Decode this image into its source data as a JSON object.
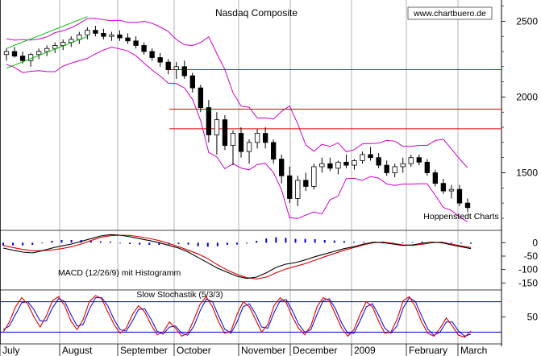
{
  "chart_data": {
    "type": "candlestick",
    "title": "Nasdaq Composite",
    "source_label": "www.chartbuero.de",
    "credit": "Hoppenstedt Charts",
    "x_months": [
      "July",
      "August",
      "September",
      "October",
      "November",
      "December",
      "2009",
      "February",
      "March"
    ],
    "price_panel": {
      "y_ticks": [
        2500,
        2000,
        1500
      ],
      "ylim": [
        1120,
        2640
      ],
      "resistance_levels": [
        2180,
        1920,
        1790
      ],
      "candles": [
        {
          "o": 2280,
          "h": 2320,
          "l": 2240,
          "c": 2300
        },
        {
          "o": 2300,
          "h": 2330,
          "l": 2260,
          "c": 2270
        },
        {
          "o": 2270,
          "h": 2300,
          "l": 2220,
          "c": 2240
        },
        {
          "o": 2240,
          "h": 2290,
          "l": 2200,
          "c": 2280
        },
        {
          "o": 2280,
          "h": 2320,
          "l": 2250,
          "c": 2300
        },
        {
          "o": 2300,
          "h": 2340,
          "l": 2270,
          "c": 2320
        },
        {
          "o": 2320,
          "h": 2360,
          "l": 2290,
          "c": 2340
        },
        {
          "o": 2340,
          "h": 2380,
          "l": 2310,
          "c": 2360
        },
        {
          "o": 2360,
          "h": 2400,
          "l": 2330,
          "c": 2380
        },
        {
          "o": 2380,
          "h": 2430,
          "l": 2350,
          "c": 2410
        },
        {
          "o": 2410,
          "h": 2460,
          "l": 2380,
          "c": 2440
        },
        {
          "o": 2440,
          "h": 2470,
          "l": 2400,
          "c": 2420
        },
        {
          "o": 2420,
          "h": 2450,
          "l": 2380,
          "c": 2400
        },
        {
          "o": 2400,
          "h": 2430,
          "l": 2370,
          "c": 2410
        },
        {
          "o": 2410,
          "h": 2440,
          "l": 2370,
          "c": 2390
        },
        {
          "o": 2390,
          "h": 2420,
          "l": 2350,
          "c": 2370
        },
        {
          "o": 2370,
          "h": 2400,
          "l": 2320,
          "c": 2340
        },
        {
          "o": 2340,
          "h": 2360,
          "l": 2280,
          "c": 2300
        },
        {
          "o": 2300,
          "h": 2320,
          "l": 2240,
          "c": 2260
        },
        {
          "o": 2260,
          "h": 2290,
          "l": 2200,
          "c": 2230
        },
        {
          "o": 2230,
          "h": 2250,
          "l": 2150,
          "c": 2180
        },
        {
          "o": 2180,
          "h": 2230,
          "l": 2120,
          "c": 2200
        },
        {
          "o": 2200,
          "h": 2240,
          "l": 2120,
          "c": 2140
        },
        {
          "o": 2140,
          "h": 2160,
          "l": 2030,
          "c": 2060
        },
        {
          "o": 2060,
          "h": 2080,
          "l": 1900,
          "c": 1930
        },
        {
          "o": 1930,
          "h": 1980,
          "l": 1700,
          "c": 1750
        },
        {
          "o": 1750,
          "h": 1900,
          "l": 1620,
          "c": 1850
        },
        {
          "o": 1850,
          "h": 1880,
          "l": 1650,
          "c": 1680
        },
        {
          "o": 1680,
          "h": 1780,
          "l": 1550,
          "c": 1760
        },
        {
          "o": 1760,
          "h": 1800,
          "l": 1600,
          "c": 1640
        },
        {
          "o": 1640,
          "h": 1720,
          "l": 1560,
          "c": 1700
        },
        {
          "o": 1700,
          "h": 1790,
          "l": 1660,
          "c": 1760
        },
        {
          "o": 1760,
          "h": 1800,
          "l": 1660,
          "c": 1700
        },
        {
          "o": 1700,
          "h": 1720,
          "l": 1560,
          "c": 1590
        },
        {
          "o": 1590,
          "h": 1620,
          "l": 1430,
          "c": 1480
        },
        {
          "o": 1480,
          "h": 1540,
          "l": 1300,
          "c": 1330
        },
        {
          "o": 1330,
          "h": 1480,
          "l": 1280,
          "c": 1450
        },
        {
          "o": 1450,
          "h": 1500,
          "l": 1380,
          "c": 1410
        },
        {
          "o": 1410,
          "h": 1560,
          "l": 1390,
          "c": 1540
        },
        {
          "o": 1540,
          "h": 1600,
          "l": 1500,
          "c": 1560
        },
        {
          "o": 1560,
          "h": 1600,
          "l": 1510,
          "c": 1530
        },
        {
          "o": 1530,
          "h": 1580,
          "l": 1490,
          "c": 1570
        },
        {
          "o": 1570,
          "h": 1620,
          "l": 1530,
          "c": 1550
        },
        {
          "o": 1550,
          "h": 1590,
          "l": 1520,
          "c": 1580
        },
        {
          "o": 1580,
          "h": 1640,
          "l": 1560,
          "c": 1620
        },
        {
          "o": 1620,
          "h": 1670,
          "l": 1580,
          "c": 1600
        },
        {
          "o": 1600,
          "h": 1630,
          "l": 1530,
          "c": 1550
        },
        {
          "o": 1550,
          "h": 1580,
          "l": 1480,
          "c": 1500
        },
        {
          "o": 1500,
          "h": 1560,
          "l": 1470,
          "c": 1540
        },
        {
          "o": 1540,
          "h": 1600,
          "l": 1500,
          "c": 1560
        },
        {
          "o": 1560,
          "h": 1620,
          "l": 1540,
          "c": 1600
        },
        {
          "o": 1600,
          "h": 1620,
          "l": 1550,
          "c": 1570
        },
        {
          "o": 1570,
          "h": 1590,
          "l": 1480,
          "c": 1500
        },
        {
          "o": 1500,
          "h": 1520,
          "l": 1410,
          "c": 1430
        },
        {
          "o": 1430,
          "h": 1460,
          "l": 1360,
          "c": 1380
        },
        {
          "o": 1380,
          "h": 1420,
          "l": 1330,
          "c": 1390
        },
        {
          "o": 1390,
          "h": 1420,
          "l": 1280,
          "c": 1300
        },
        {
          "o": 1300,
          "h": 1330,
          "l": 1240,
          "c": 1270
        }
      ]
    },
    "macd_panel": {
      "label": "MACD (12/26/9) mit Histogramm",
      "y_ticks": [
        0,
        -50,
        -100,
        -150
      ],
      "ylim": [
        -170,
        40
      ],
      "macd": [
        -20,
        -28,
        -35,
        -38,
        -30,
        -20,
        -12,
        -5,
        5,
        15,
        25,
        30,
        28,
        22,
        15,
        8,
        0,
        -10,
        -20,
        -35,
        -55,
        -75,
        -95,
        -110,
        -125,
        -133,
        -128,
        -112,
        -92,
        -80,
        -74,
        -64,
        -52,
        -42,
        -32,
        -22,
        -15,
        -5,
        2,
        0,
        -5,
        -10,
        -8,
        -2,
        2,
        0,
        -8,
        -15,
        -22
      ],
      "signal": [
        -10,
        -18,
        -25,
        -30,
        -30,
        -27,
        -22,
        -15,
        -5,
        8,
        20,
        26,
        28,
        27,
        22,
        16,
        8,
        -3,
        -15,
        -28,
        -42,
        -60,
        -82,
        -102,
        -118,
        -130,
        -135,
        -128,
        -112,
        -98,
        -88,
        -78,
        -65,
        -52,
        -40,
        -28,
        -18,
        -8,
        0,
        2,
        -2,
        -8,
        -10,
        -6,
        0,
        2,
        -5,
        -12,
        -18
      ],
      "histogram": [
        -10,
        -10,
        -10,
        -8,
        0,
        7,
        10,
        10,
        10,
        7,
        5,
        4,
        0,
        -5,
        -7,
        -8,
        -8,
        -7,
        -5,
        -7,
        -13,
        -15,
        -13,
        -8,
        -7,
        -3,
        7,
        16,
        20,
        18,
        14,
        14,
        13,
        10,
        8,
        6,
        3,
        3,
        2,
        -2,
        -3,
        -2,
        2,
        4,
        2,
        -2,
        -3,
        -3,
        -4
      ]
    },
    "stochastic_panel": {
      "label": "Slow Stochastik (5/3/3)",
      "y_ticks": [
        50
      ],
      "ylim": [
        0,
        100
      ],
      "bands": [
        80,
        20
      ],
      "k": [
        20,
        40,
        70,
        88,
        75,
        50,
        30,
        52,
        82,
        90,
        72,
        42,
        25,
        45,
        80,
        92,
        86,
        60,
        35,
        18,
        28,
        55,
        72,
        60,
        35,
        15,
        20,
        40,
        28,
        12,
        18,
        45,
        75,
        90,
        70,
        40,
        18,
        22,
        55,
        80,
        70,
        45,
        20,
        35,
        72,
        88,
        78,
        50,
        28,
        15,
        32,
        70,
        88,
        82,
        55,
        28,
        12,
        25,
        55,
        80,
        70,
        42,
        18,
        20,
        45,
        82,
        90,
        70,
        40,
        18,
        12,
        28,
        48,
        32,
        14,
        10,
        22
      ],
      "d": [
        25,
        32,
        55,
        78,
        80,
        64,
        42,
        42,
        68,
        86,
        80,
        55,
        32,
        35,
        65,
        88,
        88,
        72,
        45,
        25,
        22,
        42,
        65,
        66,
        46,
        22,
        16,
        30,
        32,
        18,
        14,
        32,
        62,
        85,
        80,
        52,
        26,
        18,
        40,
        70,
        76,
        56,
        30,
        28,
        58,
        82,
        84,
        62,
        36,
        20,
        25,
        55,
        82,
        86,
        66,
        38,
        18,
        18,
        42,
        70,
        76,
        54,
        28,
        18,
        32,
        68,
        88,
        80,
        52,
        26,
        14,
        20,
        40,
        40,
        22,
        12,
        16
      ]
    }
  }
}
